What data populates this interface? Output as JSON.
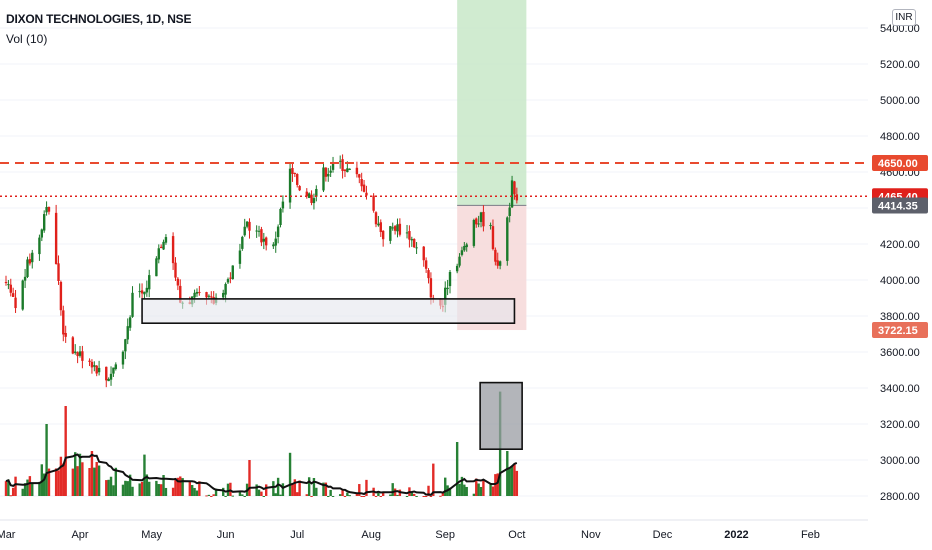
{
  "header": {
    "title": "DIXON TECHNOLOGIES, 1D, NSE",
    "indicator": "Vol (10)",
    "currency_badge": "INR"
  },
  "colors": {
    "up": "#1b7a2a",
    "down": "#e0201b",
    "resistance_line": "#e84a2f",
    "current_line": "#e0201b",
    "target_zone": "#c8e8c8",
    "stop_zone": "#f6d8d8",
    "support_box": "#e4e6ec",
    "volume_ma": "#111111",
    "axis_text": "#131722"
  },
  "chart_data": {
    "type": "candlestick",
    "symbol": "DIXON TECHNOLOGIES",
    "interval": "1D",
    "exchange": "NSE",
    "price_axis": {
      "ylim": [
        2620,
        5520
      ],
      "ticks": [
        "5400.00",
        "5200.00",
        "5000.00",
        "4800.00",
        "4600.00",
        "4400.00",
        "4200.00",
        "4000.00",
        "3800.00",
        "3600.00",
        "3400.00",
        "3200.00",
        "3000.00",
        "2800.00"
      ]
    },
    "time_axis": {
      "ticks": [
        "Mar",
        "Apr",
        "May",
        "Jun",
        "Jul",
        "Aug",
        "Sep",
        "Oct",
        "Nov",
        "Dec",
        "2022",
        "Feb"
      ]
    },
    "price_labels": [
      {
        "text": "4650.00",
        "price": 4650,
        "color": "#e84a2f"
      },
      {
        "text": "4465.40",
        "price": 4465,
        "color": "#e0201b"
      },
      {
        "text": "4414.35",
        "price": 4414,
        "color": "#5d606b"
      },
      {
        "text": "3722.15",
        "price": 3722,
        "color": "#e8705a"
      }
    ],
    "horizontal_lines": [
      {
        "price": 4650,
        "style": "dashed",
        "color": "#e84a2f"
      },
      {
        "price": 4465,
        "style": "dotted",
        "color": "#e0201b"
      }
    ],
    "position_tool": {
      "entry": 4414.35,
      "target": 5520,
      "stop": 3722.15,
      "start": "2021-09-06",
      "end": "2021-10-05"
    },
    "support_zone": {
      "top": 3895,
      "bottom": 3760,
      "start": "2021-04-27",
      "end": "2021-09-30"
    },
    "volume_highlight": {
      "date": "2021-09-24"
    },
    "volume_ma_period": 10,
    "trend_anchors": [
      [
        "2021-03-01",
        3980
      ],
      [
        "2021-03-05",
        3850
      ],
      [
        "2021-03-10",
        4080
      ],
      [
        "2021-03-15",
        4250
      ],
      [
        "2021-03-18",
        4440
      ],
      [
        "2021-03-22",
        4100
      ],
      [
        "2021-03-25",
        3720
      ],
      [
        "2021-03-30",
        3600
      ],
      [
        "2021-04-05",
        3560
      ],
      [
        "2021-04-12",
        3450
      ],
      [
        "2021-04-19",
        3600
      ],
      [
        "2021-04-23",
        3900
      ],
      [
        "2021-04-28",
        3930
      ],
      [
        "2021-05-03",
        4150
      ],
      [
        "2021-05-07",
        4270
      ],
      [
        "2021-05-10",
        4100
      ],
      [
        "2021-05-13",
        3880
      ],
      [
        "2021-05-20",
        3900
      ],
      [
        "2021-05-27",
        3880
      ],
      [
        "2021-06-02",
        4000
      ],
      [
        "2021-06-07",
        4150
      ],
      [
        "2021-06-10",
        4320
      ],
      [
        "2021-06-15",
        4250
      ],
      [
        "2021-06-21",
        4180
      ],
      [
        "2021-06-24",
        4380
      ],
      [
        "2021-06-28",
        4600
      ],
      [
        "2021-07-02",
        4520
      ],
      [
        "2021-07-07",
        4460
      ],
      [
        "2021-07-12",
        4600
      ],
      [
        "2021-07-19",
        4650
      ],
      [
        "2021-07-23",
        4600
      ],
      [
        "2021-07-28",
        4550
      ],
      [
        "2021-08-02",
        4370
      ],
      [
        "2021-08-06",
        4250
      ],
      [
        "2021-08-11",
        4300
      ],
      [
        "2021-08-17",
        4250
      ],
      [
        "2021-08-23",
        4100
      ],
      [
        "2021-08-27",
        3880
      ],
      [
        "2021-08-31",
        3860
      ],
      [
        "2021-09-03",
        4050
      ],
      [
        "2021-09-08",
        4150
      ],
      [
        "2021-09-13",
        4300
      ],
      [
        "2021-09-16",
        4350
      ],
      [
        "2021-09-20",
        4280
      ],
      [
        "2021-09-23",
        4050
      ],
      [
        "2021-09-27",
        4350
      ],
      [
        "2021-09-29",
        4520
      ],
      [
        "2021-10-01",
        4414
      ]
    ],
    "volume_anchors": [
      [
        "2021-03-01",
        2840
      ],
      [
        "2021-03-15",
        2920
      ],
      [
        "2021-03-26",
        3010
      ],
      [
        "2021-04-05",
        2990
      ],
      [
        "2021-04-20",
        2870
      ],
      [
        "2021-05-05",
        2900
      ],
      [
        "2021-05-20",
        2830
      ],
      [
        "2021-06-10",
        2820
      ],
      [
        "2021-06-28",
        2860
      ],
      [
        "2021-07-15",
        2840
      ],
      [
        "2021-08-01",
        2840
      ],
      [
        "2021-08-20",
        2800
      ],
      [
        "2021-09-06",
        2870
      ],
      [
        "2021-09-20",
        2850
      ],
      [
        "2021-09-27",
        2940
      ],
      [
        "2021-10-01",
        2940
      ]
    ],
    "volume_spikes": [
      [
        "2021-03-18",
        3200
      ],
      [
        "2021-03-26",
        3300
      ],
      [
        "2021-04-06",
        3050
      ],
      [
        "2021-04-28",
        3030
      ],
      [
        "2021-06-11",
        3000
      ],
      [
        "2021-06-28",
        3040
      ],
      [
        "2021-08-27",
        2980
      ],
      [
        "2021-09-06",
        3100
      ],
      [
        "2021-09-24",
        3380
      ],
      [
        "2021-09-27",
        3050
      ]
    ]
  }
}
